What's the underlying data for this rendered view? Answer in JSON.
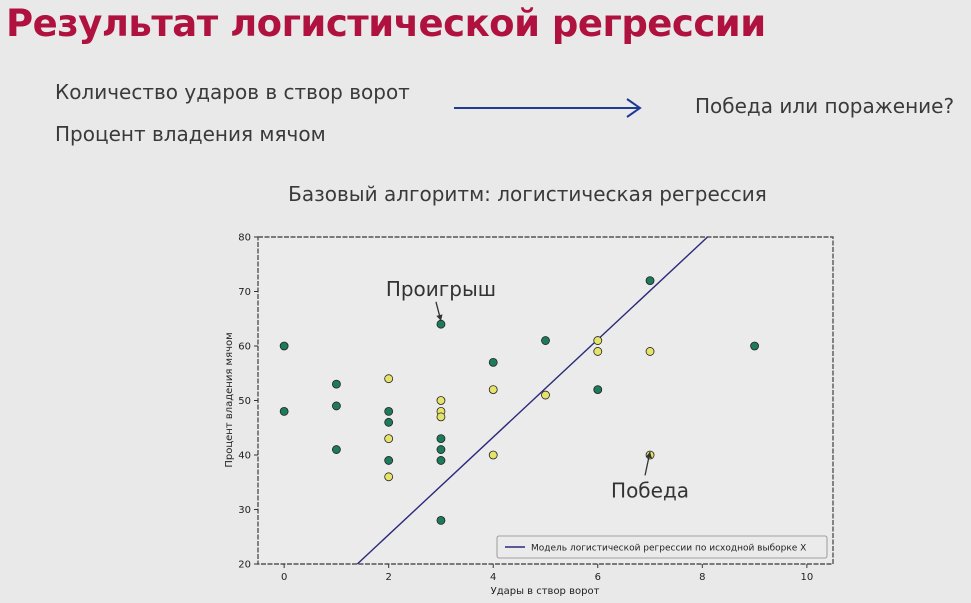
{
  "slide": {
    "title": "Результат логистической регрессии",
    "feature_1": "Количество ударов в створ ворот",
    "feature_2": "Процент владения мячом",
    "target": "Победа или поражение?",
    "arrow_color": "#1f3a93",
    "title_color": "#b0123f"
  },
  "chart_data": {
    "type": "scatter",
    "title": "Базовый алгоритм: логистическая регрессия",
    "xlabel": "Удары в створ ворот",
    "ylabel": "Процент владения мячом",
    "xlim": [
      -0.5,
      10.5
    ],
    "ylim": [
      20,
      80
    ],
    "xticks": [
      0,
      2,
      4,
      6,
      8,
      10
    ],
    "yticks": [
      20,
      30,
      40,
      50,
      60,
      70,
      80
    ],
    "grid": false,
    "legend_position": "bottom-right",
    "series": [
      {
        "class": "loss",
        "color": "#1d7a5a",
        "points": [
          [
            0,
            60
          ],
          [
            0,
            48
          ],
          [
            1,
            53
          ],
          [
            1,
            49
          ],
          [
            1,
            41
          ],
          [
            2,
            48
          ],
          [
            2,
            46
          ],
          [
            2,
            39
          ],
          [
            3,
            64
          ],
          [
            3,
            43
          ],
          [
            3,
            41
          ],
          [
            3,
            39
          ],
          [
            3,
            28
          ],
          [
            4,
            57
          ],
          [
            5,
            61
          ],
          [
            6,
            52
          ],
          [
            7,
            72
          ],
          [
            9,
            60
          ]
        ]
      },
      {
        "class": "win",
        "color": "#e6e36b",
        "points": [
          [
            2,
            54
          ],
          [
            2,
            43
          ],
          [
            2,
            36
          ],
          [
            3,
            50
          ],
          [
            3,
            48
          ],
          [
            3,
            47
          ],
          [
            4,
            52
          ],
          [
            4,
            40
          ],
          [
            5,
            51
          ],
          [
            6,
            61
          ],
          [
            6,
            59
          ],
          [
            7,
            59
          ],
          [
            7,
            40
          ]
        ]
      }
    ],
    "decision_line": {
      "name": "Модель логистической регрессии по исходной выборке X",
      "color": "#2a2a7a",
      "points": [
        [
          1.4,
          20
        ],
        [
          8.1,
          80
        ]
      ]
    },
    "annotations": [
      {
        "text": "Проигрыш",
        "label_at": [
          3,
          70.5
        ],
        "point_at": [
          3,
          64.6
        ]
      },
      {
        "text": "Победа",
        "label_at": [
          7,
          33.5
        ],
        "point_at": [
          7,
          40.6
        ]
      }
    ]
  }
}
